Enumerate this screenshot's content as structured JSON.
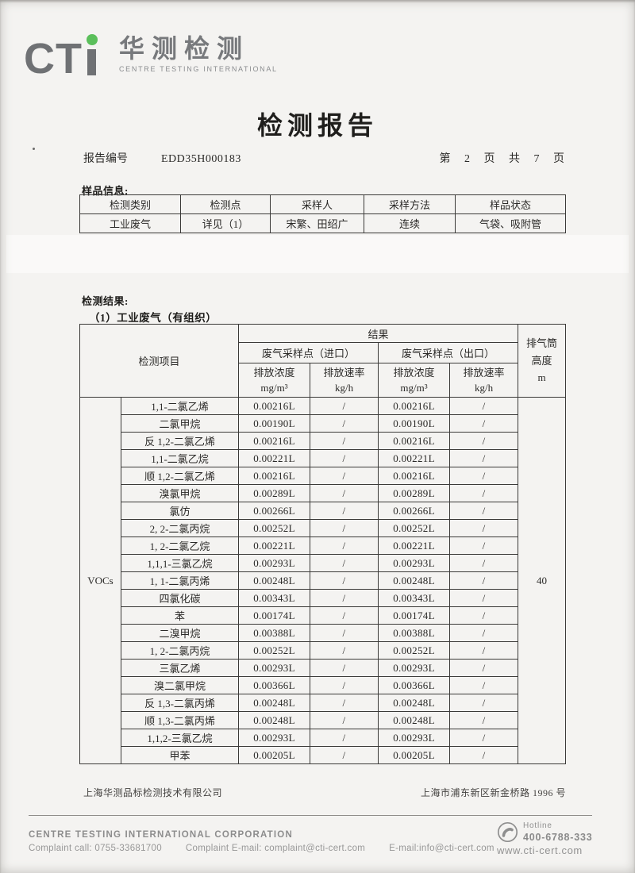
{
  "logo": {
    "cti_prefix": "CT",
    "chinese_name": "华测检测",
    "subtitle": "CENTRE TESTING INTERNATIONAL",
    "accent_color": "#5bbf5b",
    "gray_color": "#6f7174"
  },
  "header": {
    "title": "检测报告",
    "report_no_label": "报告编号",
    "report_no": "EDD35H000183",
    "page_info": "第 2 页 共 7 页"
  },
  "sample_info": {
    "section_label": "样品信息:",
    "headers": [
      "检测类别",
      "检测点",
      "采样人",
      "采样方法",
      "样品状态"
    ],
    "values": [
      "工业废气",
      "详见（1）",
      "宋繁、田绍广",
      "连续",
      "气袋、吸附管"
    ]
  },
  "results": {
    "section_label": "检测结果:",
    "subsection_label": "（1）工业废气（有组织）",
    "header": {
      "item_label": "检测项目",
      "result_label": "结果",
      "inlet_label": "废气采样点（进口）",
      "outlet_label": "废气采样点（出口）",
      "conc_label": "排放浓度",
      "conc_unit": "mg/m³",
      "rate_label": "排放速率",
      "rate_unit": "kg/h",
      "stack_line1": "排气筒",
      "stack_line2": "高度",
      "stack_line3": "m"
    },
    "category": "VOCs",
    "stack_height": "40",
    "rows": [
      {
        "name": "1,1-二氯乙烯",
        "inlet_conc": "0.00216L",
        "inlet_rate": "/",
        "outlet_conc": "0.00216L",
        "outlet_rate": "/"
      },
      {
        "name": "二氯甲烷",
        "inlet_conc": "0.00190L",
        "inlet_rate": "/",
        "outlet_conc": "0.00190L",
        "outlet_rate": "/"
      },
      {
        "name": "反 1,2-二氯乙烯",
        "inlet_conc": "0.00216L",
        "inlet_rate": "/",
        "outlet_conc": "0.00216L",
        "outlet_rate": "/"
      },
      {
        "name": "1,1-二氯乙烷",
        "inlet_conc": "0.00221L",
        "inlet_rate": "/",
        "outlet_conc": "0.00221L",
        "outlet_rate": "/"
      },
      {
        "name": "顺 1,2-二氯乙烯",
        "inlet_conc": "0.00216L",
        "inlet_rate": "/",
        "outlet_conc": "0.00216L",
        "outlet_rate": "/"
      },
      {
        "name": "溴氯甲烷",
        "inlet_conc": "0.00289L",
        "inlet_rate": "/",
        "outlet_conc": "0.00289L",
        "outlet_rate": "/"
      },
      {
        "name": "氯仿",
        "inlet_conc": "0.00266L",
        "inlet_rate": "/",
        "outlet_conc": "0.00266L",
        "outlet_rate": "/"
      },
      {
        "name": "2, 2-二氯丙烷",
        "inlet_conc": "0.00252L",
        "inlet_rate": "/",
        "outlet_conc": "0.00252L",
        "outlet_rate": "/"
      },
      {
        "name": "1, 2-二氯乙烷",
        "inlet_conc": "0.00221L",
        "inlet_rate": "/",
        "outlet_conc": "0.00221L",
        "outlet_rate": "/"
      },
      {
        "name": "1,1,1-三氯乙烷",
        "inlet_conc": "0.00293L",
        "inlet_rate": "/",
        "outlet_conc": "0.00293L",
        "outlet_rate": "/"
      },
      {
        "name": "1, 1-二氯丙烯",
        "inlet_conc": "0.00248L",
        "inlet_rate": "/",
        "outlet_conc": "0.00248L",
        "outlet_rate": "/"
      },
      {
        "name": "四氯化碳",
        "inlet_conc": "0.00343L",
        "inlet_rate": "/",
        "outlet_conc": "0.00343L",
        "outlet_rate": "/"
      },
      {
        "name": "苯",
        "inlet_conc": "0.00174L",
        "inlet_rate": "/",
        "outlet_conc": "0.00174L",
        "outlet_rate": "/"
      },
      {
        "name": "二溴甲烷",
        "inlet_conc": "0.00388L",
        "inlet_rate": "/",
        "outlet_conc": "0.00388L",
        "outlet_rate": "/"
      },
      {
        "name": "1, 2-二氯丙烷",
        "inlet_conc": "0.00252L",
        "inlet_rate": "/",
        "outlet_conc": "0.00252L",
        "outlet_rate": "/"
      },
      {
        "name": "三氯乙烯",
        "inlet_conc": "0.00293L",
        "inlet_rate": "/",
        "outlet_conc": "0.00293L",
        "outlet_rate": "/"
      },
      {
        "name": "溴二氯甲烷",
        "inlet_conc": "0.00366L",
        "inlet_rate": "/",
        "outlet_conc": "0.00366L",
        "outlet_rate": "/"
      },
      {
        "name": "反 1,3-二氯丙烯",
        "inlet_conc": "0.00248L",
        "inlet_rate": "/",
        "outlet_conc": "0.00248L",
        "outlet_rate": "/"
      },
      {
        "name": "顺 1,3-二氯丙烯",
        "inlet_conc": "0.00248L",
        "inlet_rate": "/",
        "outlet_conc": "0.00248L",
        "outlet_rate": "/"
      },
      {
        "name": "1,1,2-三氯乙烷",
        "inlet_conc": "0.00293L",
        "inlet_rate": "/",
        "outlet_conc": "0.00293L",
        "outlet_rate": "/"
      },
      {
        "name": "甲苯",
        "inlet_conc": "0.00205L",
        "inlet_rate": "/",
        "outlet_conc": "0.00205L",
        "outlet_rate": "/"
      }
    ]
  },
  "footer": {
    "company_cn": "上海华测品标检测技术有限公司",
    "address_cn": "上海市浦东新区新金桥路 1996 号",
    "corp_name": "CENTRE TESTING INTERNATIONAL CORPORATION",
    "complaint_call": "Complaint call: 0755-33681700",
    "complaint_email": "Complaint E-mail: complaint@cti-cert.com",
    "email": "E-mail:info@cti-cert.com",
    "hotline_label": "Hotline",
    "hotline_number": "400-6788-333",
    "website": "www.cti-cert.com"
  }
}
